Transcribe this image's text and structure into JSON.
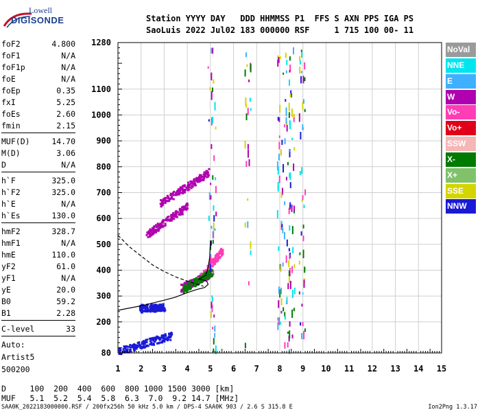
{
  "logo": {
    "line1": "Lowell",
    "line2": "DIGISONDE"
  },
  "header": {
    "line1": "Station YYYY DAY   DDD HHMMSS P1  FFS S AXN PPS IGA PS",
    "line2": "SaoLuis 2022 Jul02 183 000000 RSF     1 715 100 00- 11"
  },
  "params_group1": [
    {
      "label": "foF2",
      "value": "4.800"
    },
    {
      "label": "foF1",
      "value": "N/A"
    },
    {
      "label": "foF1p",
      "value": "N/A"
    },
    {
      "label": "foE",
      "value": "N/A"
    },
    {
      "label": "foEp",
      "value": "0.35"
    },
    {
      "label": "fxI",
      "value": "5.25"
    },
    {
      "label": "foEs",
      "value": "2.60"
    },
    {
      "label": "fmin",
      "value": "2.15"
    }
  ],
  "params_group2": [
    {
      "label": "MUF(D)",
      "value": "14.70"
    },
    {
      "label": "M(D)",
      "value": "3.06"
    },
    {
      "label": "D",
      "value": "N/A"
    }
  ],
  "params_group3": [
    {
      "label": "h`F",
      "value": "325.0"
    },
    {
      "label": "h`F2",
      "value": "325.0"
    },
    {
      "label": "h`E",
      "value": "N/A"
    },
    {
      "label": "h`Es",
      "value": "130.0"
    }
  ],
  "params_group4": [
    {
      "label": "hmF2",
      "value": "328.7"
    },
    {
      "label": "hmF1",
      "value": "N/A"
    },
    {
      "label": "hmE",
      "value": "110.0"
    },
    {
      "label": "yF2",
      "value": "61.0"
    },
    {
      "label": "yF1",
      "value": "N/A"
    },
    {
      "label": "yE",
      "value": "20.0"
    },
    {
      "label": "B0",
      "value": "59.2"
    },
    {
      "label": "B1",
      "value": "2.28"
    }
  ],
  "clevel": {
    "label": "C-level",
    "value": "33"
  },
  "auto": {
    "line1": "Auto:",
    "line2": "Artist5",
    "line3": "500200"
  },
  "legend": [
    {
      "label": "NoVal",
      "color": "#9a9a9a"
    },
    {
      "label": "NNE",
      "color": "#00e5ee"
    },
    {
      "label": "E",
      "color": "#3fb0ff"
    },
    {
      "label": "W",
      "color": "#b000b0"
    },
    {
      "label": "Vo-",
      "color": "#ff3db4"
    },
    {
      "label": "Vo+",
      "color": "#e0001a"
    },
    {
      "label": "SSW",
      "color": "#f4b6b6"
    },
    {
      "label": "X-",
      "color": "#007a00"
    },
    {
      "label": "X+",
      "color": "#7fc26a"
    },
    {
      "label": "SSE",
      "color": "#d4d400"
    },
    {
      "label": "NNW",
      "color": "#1a1ad6"
    }
  ],
  "muf_table": {
    "line1": "D     100  200  400  600  800 1000 1500 3000 [km]",
    "line2": "MUF   5.1  5.2  5.4  5.8  6.3  7.0  9.2 14.7 [MHz]"
  },
  "footer": {
    "left": "SAA0K_2022183000000.RSF / 200fx256h 50 kHz 5.0 km / DPS-4 SAA0K 903 / 2.6 S 315.8 E",
    "right": "Ion2Png 1.3.17"
  },
  "chart_data": {
    "type": "scatter",
    "xlabel": "",
    "ylabel": "",
    "xlim": [
      1,
      15
    ],
    "ylim": [
      80,
      1280
    ],
    "x_ticks": [
      1,
      2,
      3,
      4,
      5,
      6,
      7,
      8,
      9,
      10,
      11,
      12,
      13,
      14,
      15
    ],
    "y_ticks": [
      80,
      200,
      300,
      400,
      500,
      600,
      700,
      800,
      900,
      1000,
      1100,
      1280
    ],
    "grid": true,
    "foF2": 4.8,
    "profile_curve": [
      [
        1.0,
        245
      ],
      [
        2.0,
        262
      ],
      [
        3.0,
        284
      ],
      [
        3.5,
        296
      ],
      [
        4.0,
        313
      ],
      [
        4.4,
        325
      ],
      [
        4.75,
        333
      ],
      [
        4.9,
        345
      ],
      [
        4.85,
        356
      ],
      [
        4.7,
        362
      ],
      [
        4.5,
        365
      ],
      [
        4.8,
        380
      ],
      [
        4.9,
        410
      ],
      [
        4.97,
        450
      ],
      [
        5.0,
        515
      ]
    ],
    "model_curve_dashed": [
      [
        1.0,
        535
      ],
      [
        1.5,
        490
      ],
      [
        2.0,
        455
      ],
      [
        2.5,
        420
      ],
      [
        3.0,
        395
      ],
      [
        3.5,
        374
      ],
      [
        4.0,
        358
      ],
      [
        4.4,
        346
      ],
      [
        4.7,
        338
      ]
    ],
    "traces": [
      {
        "name": "W",
        "x0": 3.7,
        "x1": 4.9,
        "y0": 335,
        "y1": 385
      },
      {
        "name": "Vo-",
        "x0": 4.4,
        "x1": 5.5,
        "y0": 360,
        "y1": 480
      },
      {
        "name": "X-",
        "x0": 3.8,
        "x1": 5.1,
        "y0": 330,
        "y1": 400
      },
      {
        "name": "W",
        "x0": 2.8,
        "x1": 4.9,
        "y0": 660,
        "y1": 780
      },
      {
        "name": "W",
        "x0": 2.2,
        "x1": 4.0,
        "y0": 540,
        "y1": 650
      },
      {
        "name": "NNW",
        "x0": 1.0,
        "x1": 3.3,
        "y0": 90,
        "y1": 150
      },
      {
        "name": "NNW",
        "x0": 1.9,
        "x1": 3.0,
        "y0": 255,
        "y1": 258
      }
    ]
  }
}
